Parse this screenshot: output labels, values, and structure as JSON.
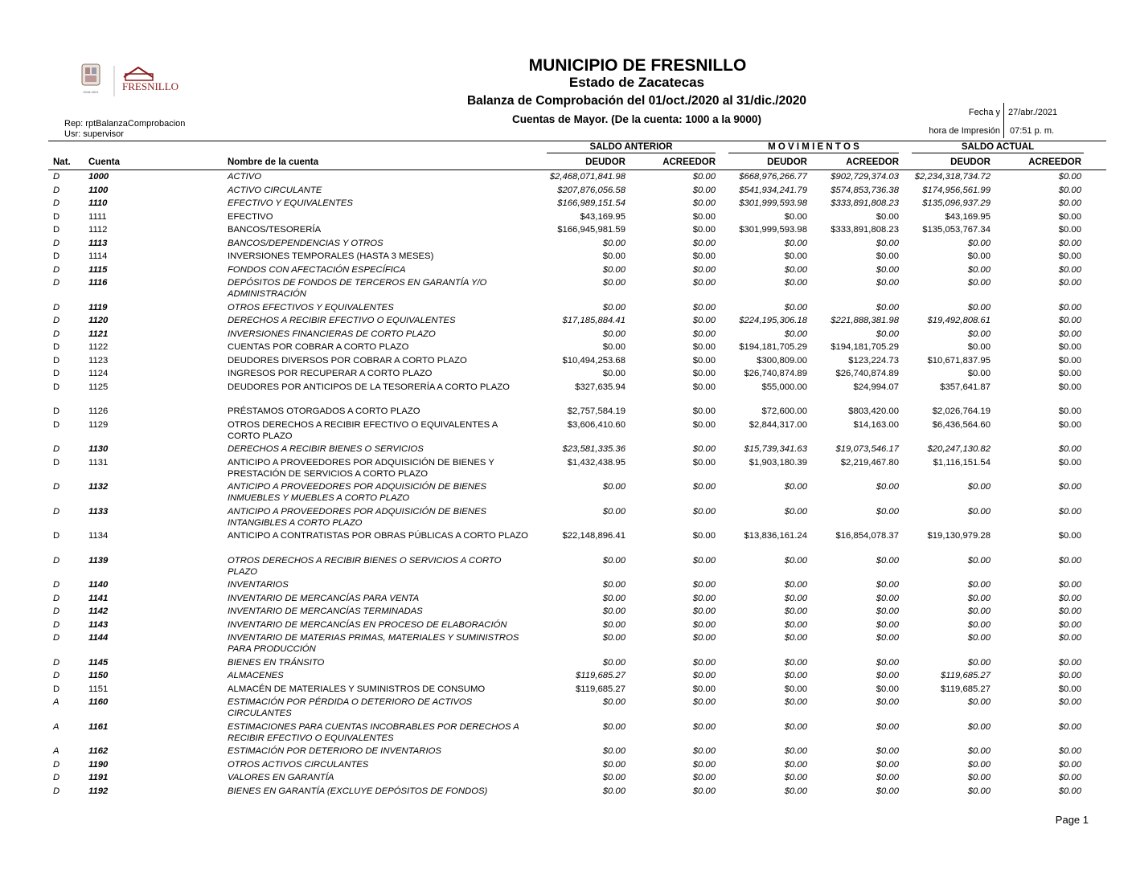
{
  "header": {
    "logo_text": "FRESNILLO",
    "title": "MUNICIPIO DE FRESNILLO",
    "state": "Estado de Zacatecas",
    "report_title": "Balanza de Comprobación del 01/oct./2020 al 31/dic./2020",
    "subtitle": "Cuentas de Mayor. (De la cuenta: 1000 a la 9000)",
    "rep": "Rep: rptBalanzaComprobacion",
    "usr": "Usr: supervisor",
    "fecha_label": "Fecha y",
    "fecha_value": "27/abr./2021",
    "hora_label": "hora de Impresión",
    "hora_value": "07:51 p. m."
  },
  "columns": {
    "groups": [
      "SALDO ANTERIOR",
      "M O V I M I E N T O S",
      "SALDO ACTUAL"
    ],
    "nat": "Nat.",
    "cuenta": "Cuenta",
    "nombre": "Nombre de la cuenta",
    "deudor": "DEUDOR",
    "acreedor": "ACREEDOR"
  },
  "rows": [
    {
      "nat": "D",
      "cuenta": "1000",
      "nombre": "ACTIVO",
      "style": "italic",
      "values": [
        "$2,468,071,841.98",
        "$0.00",
        "$668,976,266.77",
        "$902,729,374.03",
        "$2,234,318,734.72",
        "$0.00"
      ]
    },
    {
      "nat": "D",
      "cuenta": "1100",
      "nombre": "ACTIVO CIRCULANTE",
      "style": "italic",
      "values": [
        "$207,876,056.58",
        "$0.00",
        "$541,934,241.79",
        "$574,853,736.38",
        "$174,956,561.99",
        "$0.00"
      ]
    },
    {
      "nat": "D",
      "cuenta": "1110",
      "nombre": "EFECTIVO Y EQUIVALENTES",
      "style": "italic",
      "values": [
        "$166,989,151.54",
        "$0.00",
        "$301,999,593.98",
        "$333,891,808.23",
        "$135,096,937.29",
        "$0.00"
      ]
    },
    {
      "nat": "D",
      "cuenta": "1111",
      "nombre": "EFECTIVO",
      "style": "normal",
      "values": [
        "$43,169.95",
        "$0.00",
        "$0.00",
        "$0.00",
        "$43,169.95",
        "$0.00"
      ]
    },
    {
      "nat": "D",
      "cuenta": "1112",
      "nombre": "BANCOS/TESORERÍA",
      "style": "normal",
      "values": [
        "$166,945,981.59",
        "$0.00",
        "$301,999,593.98",
        "$333,891,808.23",
        "$135,053,767.34",
        "$0.00"
      ]
    },
    {
      "nat": "D",
      "cuenta": "1113",
      "nombre": "BANCOS/DEPENDENCIAS Y OTROS",
      "style": "italic",
      "values": [
        "$0.00",
        "$0.00",
        "$0.00",
        "$0.00",
        "$0.00",
        "$0.00"
      ]
    },
    {
      "nat": "D",
      "cuenta": "1114",
      "nombre": "INVERSIONES TEMPORALES (HASTA 3 MESES)",
      "style": "normal",
      "values": [
        "$0.00",
        "$0.00",
        "$0.00",
        "$0.00",
        "$0.00",
        "$0.00"
      ]
    },
    {
      "nat": "D",
      "cuenta": "1115",
      "nombre": "FONDOS CON AFECTACIÓN ESPECÍFICA",
      "style": "italic",
      "values": [
        "$0.00",
        "$0.00",
        "$0.00",
        "$0.00",
        "$0.00",
        "$0.00"
      ]
    },
    {
      "nat": "D",
      "cuenta": "1116",
      "nombre": "DEPÓSITOS DE FONDOS DE TERCEROS EN GARANTÍA Y/O ADMINISTRACIÓN",
      "style": "italic",
      "two": true,
      "values": [
        "$0.00",
        "$0.00",
        "$0.00",
        "$0.00",
        "$0.00",
        "$0.00"
      ]
    },
    {
      "nat": "D",
      "cuenta": "1119",
      "nombre": "OTROS EFECTIVOS Y EQUIVALENTES",
      "style": "italic",
      "values": [
        "$0.00",
        "$0.00",
        "$0.00",
        "$0.00",
        "$0.00",
        "$0.00"
      ]
    },
    {
      "nat": "D",
      "cuenta": "1120",
      "nombre": "DERECHOS A RECIBIR EFECTIVO O EQUIVALENTES",
      "style": "italic",
      "values": [
        "$17,185,884.41",
        "$0.00",
        "$224,195,306.18",
        "$221,888,381.98",
        "$19,492,808.61",
        "$0.00"
      ]
    },
    {
      "nat": "D",
      "cuenta": "1121",
      "nombre": "INVERSIONES FINANCIERAS DE CORTO PLAZO",
      "style": "italic",
      "values": [
        "$0.00",
        "$0.00",
        "$0.00",
        "$0.00",
        "$0.00",
        "$0.00"
      ]
    },
    {
      "nat": "D",
      "cuenta": "1122",
      "nombre": "CUENTAS POR COBRAR A CORTO PLAZO",
      "style": "normal",
      "values": [
        "$0.00",
        "$0.00",
        "$194,181,705.29",
        "$194,181,705.29",
        "$0.00",
        "$0.00"
      ]
    },
    {
      "nat": "D",
      "cuenta": "1123",
      "nombre": "DEUDORES DIVERSOS POR COBRAR A CORTO PLAZO",
      "style": "normal",
      "values": [
        "$10,494,253.68",
        "$0.00",
        "$300,809.00",
        "$123,224.73",
        "$10,671,837.95",
        "$0.00"
      ]
    },
    {
      "nat": "D",
      "cuenta": "1124",
      "nombre": "INGRESOS POR RECUPERAR A CORTO PLAZO",
      "style": "normal",
      "values": [
        "$0.00",
        "$0.00",
        "$26,740,874.89",
        "$26,740,874.89",
        "$0.00",
        "$0.00"
      ]
    },
    {
      "nat": "D",
      "cuenta": "1125",
      "nombre": "DEUDORES POR ANTICIPOS DE LA TESORERÍA A CORTO PLAZO",
      "style": "normal",
      "two": true,
      "values": [
        "$327,635.94",
        "$0.00",
        "$55,000.00",
        "$24,994.07",
        "$357,641.87",
        "$0.00"
      ]
    },
    {
      "nat": "D",
      "cuenta": "1126",
      "nombre": "PRÉSTAMOS OTORGADOS A CORTO PLAZO",
      "style": "normal",
      "values": [
        "$2,757,584.19",
        "$0.00",
        "$72,600.00",
        "$803,420.00",
        "$2,026,764.19",
        "$0.00"
      ]
    },
    {
      "nat": "D",
      "cuenta": "1129",
      "nombre": "OTROS DERECHOS A RECIBIR EFECTIVO O EQUIVALENTES A CORTO PLAZO",
      "style": "normal",
      "two": true,
      "values": [
        "$3,606,410.60",
        "$0.00",
        "$2,844,317.00",
        "$14,163.00",
        "$6,436,564.60",
        "$0.00"
      ]
    },
    {
      "nat": "D",
      "cuenta": "1130",
      "nombre": "DERECHOS A RECIBIR BIENES O SERVICIOS",
      "style": "italic",
      "values": [
        "$23,581,335.36",
        "$0.00",
        "$15,739,341.63",
        "$19,073,546.17",
        "$20,247,130.82",
        "$0.00"
      ]
    },
    {
      "nat": "D",
      "cuenta": "1131",
      "nombre": "ANTICIPO A PROVEEDORES POR ADQUISICIÓN DE BIENES Y PRESTACIÓN DE SERVICIOS A CORTO PLAZO",
      "style": "normal",
      "two": true,
      "values": [
        "$1,432,438.95",
        "$0.00",
        "$1,903,180.39",
        "$2,219,467.80",
        "$1,116,151.54",
        "$0.00"
      ]
    },
    {
      "nat": "D",
      "cuenta": "1132",
      "nombre": "ANTICIPO A PROVEEDORES POR ADQUISICIÓN DE BIENES INMUEBLES Y MUEBLES A CORTO PLAZO",
      "style": "italic",
      "two": true,
      "values": [
        "$0.00",
        "$0.00",
        "$0.00",
        "$0.00",
        "$0.00",
        "$0.00"
      ]
    },
    {
      "nat": "D",
      "cuenta": "1133",
      "nombre": "ANTICIPO A PROVEEDORES POR ADQUISICIÓN DE BIENES INTANGIBLES A CORTO PLAZO",
      "style": "italic",
      "two": true,
      "values": [
        "$0.00",
        "$0.00",
        "$0.00",
        "$0.00",
        "$0.00",
        "$0.00"
      ]
    },
    {
      "nat": "D",
      "cuenta": "1134",
      "nombre": "ANTICIPO A CONTRATISTAS POR OBRAS PÚBLICAS A CORTO PLAZO",
      "style": "normal",
      "two": true,
      "values": [
        "$22,148,896.41",
        "$0.00",
        "$13,836,161.24",
        "$16,854,078.37",
        "$19,130,979.28",
        "$0.00"
      ]
    },
    {
      "nat": "D",
      "cuenta": "1139",
      "nombre": "OTROS DERECHOS A RECIBIR BIENES O SERVICIOS A CORTO PLAZO",
      "style": "italic",
      "two": true,
      "values": [
        "$0.00",
        "$0.00",
        "$0.00",
        "$0.00",
        "$0.00",
        "$0.00"
      ]
    },
    {
      "nat": "D",
      "cuenta": "1140",
      "nombre": "INVENTARIOS",
      "style": "italic",
      "values": [
        "$0.00",
        "$0.00",
        "$0.00",
        "$0.00",
        "$0.00",
        "$0.00"
      ]
    },
    {
      "nat": "D",
      "cuenta": "1141",
      "nombre": "INVENTARIO DE MERCANCÍAS PARA VENTA",
      "style": "italic",
      "values": [
        "$0.00",
        "$0.00",
        "$0.00",
        "$0.00",
        "$0.00",
        "$0.00"
      ]
    },
    {
      "nat": "D",
      "cuenta": "1142",
      "nombre": "INVENTARIO DE MERCANCÍAS TERMINADAS",
      "style": "italic",
      "values": [
        "$0.00",
        "$0.00",
        "$0.00",
        "$0.00",
        "$0.00",
        "$0.00"
      ]
    },
    {
      "nat": "D",
      "cuenta": "1143",
      "nombre": "INVENTARIO DE MERCANCÍAS EN PROCESO DE ELABORACIÓN",
      "style": "italic",
      "values": [
        "$0.00",
        "$0.00",
        "$0.00",
        "$0.00",
        "$0.00",
        "$0.00"
      ]
    },
    {
      "nat": "D",
      "cuenta": "1144",
      "nombre": "INVENTARIO DE MATERIAS PRIMAS, MATERIALES Y SUMINISTROS PARA PRODUCCIÓN",
      "style": "italic",
      "two": true,
      "values": [
        "$0.00",
        "$0.00",
        "$0.00",
        "$0.00",
        "$0.00",
        "$0.00"
      ]
    },
    {
      "nat": "D",
      "cuenta": "1145",
      "nombre": "BIENES EN TRÁNSITO",
      "style": "italic",
      "values": [
        "$0.00",
        "$0.00",
        "$0.00",
        "$0.00",
        "$0.00",
        "$0.00"
      ]
    },
    {
      "nat": "D",
      "cuenta": "1150",
      "nombre": "ALMACENES",
      "style": "italic",
      "values": [
        "$119,685.27",
        "$0.00",
        "$0.00",
        "$0.00",
        "$119,685.27",
        "$0.00"
      ]
    },
    {
      "nat": "D",
      "cuenta": "1151",
      "nombre": "ALMACÉN DE MATERIALES Y SUMINISTROS DE CONSUMO",
      "style": "normal",
      "values": [
        "$119,685.27",
        "$0.00",
        "$0.00",
        "$0.00",
        "$119,685.27",
        "$0.00"
      ]
    },
    {
      "nat": "A",
      "cuenta": "1160",
      "nombre": "ESTIMACIÓN POR PÉRDIDA O DETERIORO DE ACTIVOS CIRCULANTES",
      "style": "italic",
      "two": true,
      "values": [
        "$0.00",
        "$0.00",
        "$0.00",
        "$0.00",
        "$0.00",
        "$0.00"
      ]
    },
    {
      "nat": "A",
      "cuenta": "1161",
      "nombre": "ESTIMACIONES PARA CUENTAS INCOBRABLES POR DERECHOS A RECIBIR EFECTIVO O EQUIVALENTES",
      "style": "italic",
      "two": true,
      "values": [
        "$0.00",
        "$0.00",
        "$0.00",
        "$0.00",
        "$0.00",
        "$0.00"
      ]
    },
    {
      "nat": "A",
      "cuenta": "1162",
      "nombre": "ESTIMACIÓN POR DETERIORO DE INVENTARIOS",
      "style": "italic",
      "values": [
        "$0.00",
        "$0.00",
        "$0.00",
        "$0.00",
        "$0.00",
        "$0.00"
      ]
    },
    {
      "nat": "D",
      "cuenta": "1190",
      "nombre": "OTROS ACTIVOS CIRCULANTES",
      "style": "italic",
      "values": [
        "$0.00",
        "$0.00",
        "$0.00",
        "$0.00",
        "$0.00",
        "$0.00"
      ]
    },
    {
      "nat": "D",
      "cuenta": "1191",
      "nombre": "VALORES EN GARANTÍA",
      "style": "italic",
      "values": [
        "$0.00",
        "$0.00",
        "$0.00",
        "$0.00",
        "$0.00",
        "$0.00"
      ]
    },
    {
      "nat": "D",
      "cuenta": "1192",
      "nombre": "BIENES EN GARANTÍA (EXCLUYE DEPÓSITOS DE FONDOS)",
      "style": "italic",
      "values": [
        "$0.00",
        "$0.00",
        "$0.00",
        "$0.00",
        "$0.00",
        "$0.00"
      ]
    }
  ],
  "footer": {
    "page": "Page 1"
  }
}
